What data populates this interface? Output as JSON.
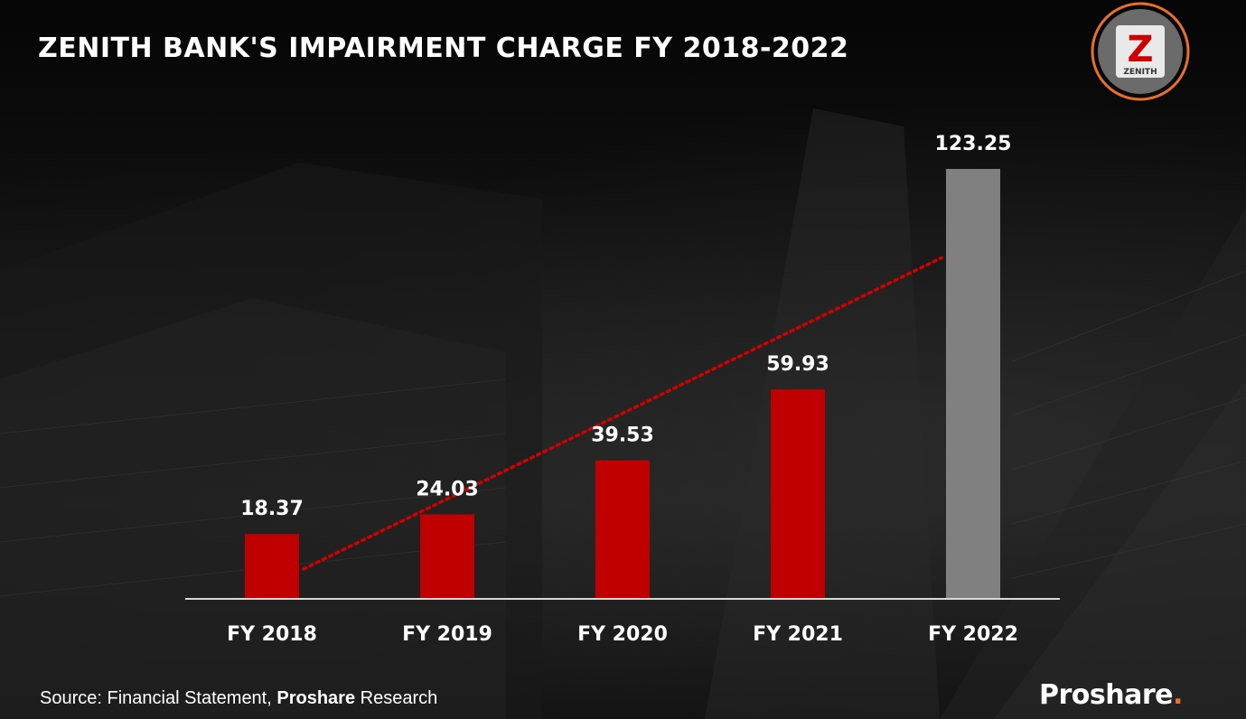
{
  "header": {
    "title": "ZENITH BANK'S IMPAIRMENT CHARGE FY 2018-2022"
  },
  "logo": {
    "letter": "Z",
    "text": "ZENITH",
    "ring_color": "#e8702a",
    "accent_color": "#cc0000"
  },
  "chart_data": {
    "type": "bar",
    "title": "ZENITH BANK'S IMPAIRMENT CHARGE FY 2018-2022",
    "xlabel": "",
    "ylabel": "",
    "categories": [
      "FY 2018",
      "FY 2019",
      "FY 2020",
      "FY 2021",
      "FY 2022"
    ],
    "values": [
      18.37,
      24.03,
      39.53,
      59.93,
      123.25
    ],
    "value_labels": [
      "18.37",
      "24.03",
      "39.53",
      "59.93",
      "123.25"
    ],
    "bar_colors": [
      "#c00000",
      "#c00000",
      "#c00000",
      "#c00000",
      "#808080"
    ],
    "ylim": [
      0,
      123.25
    ],
    "trendline": {
      "type": "linear",
      "style": "dotted",
      "color": "#d40000"
    },
    "grid": false,
    "legend": "none"
  },
  "footer": {
    "source_prefix": "Source: Financial Statement, ",
    "source_bold": "Proshare",
    "source_suffix": " Research",
    "brand": "Proshare",
    "brand_dot": "."
  }
}
